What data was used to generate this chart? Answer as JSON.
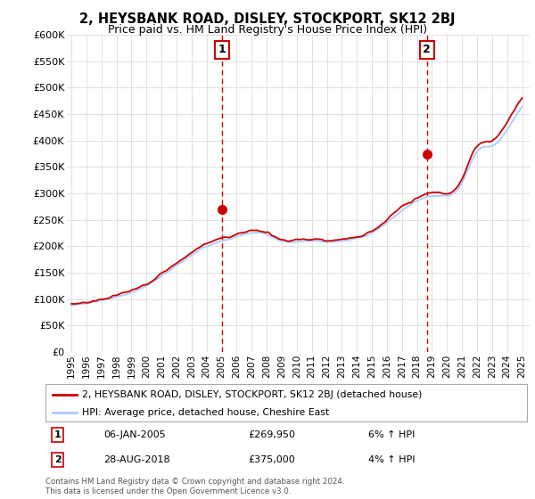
{
  "title": "2, HEYSBANK ROAD, DISLEY, STOCKPORT, SK12 2BJ",
  "subtitle": "Price paid vs. HM Land Registry's House Price Index (HPI)",
  "ylabel_ticks": [
    "£0",
    "£50K",
    "£100K",
    "£150K",
    "£200K",
    "£250K",
    "£300K",
    "£350K",
    "£400K",
    "£450K",
    "£500K",
    "£550K",
    "£600K"
  ],
  "ytick_values": [
    0,
    50000,
    100000,
    150000,
    200000,
    250000,
    300000,
    350000,
    400000,
    450000,
    500000,
    550000,
    600000
  ],
  "xlim_start": 1994.7,
  "xlim_end": 2025.5,
  "ylim_min": 0,
  "ylim_max": 600000,
  "sale1_year": 2005.03,
  "sale1_price": 269950,
  "sale1_label": "1",
  "sale1_date": "06-JAN-2005",
  "sale1_pct": "6% ↑ HPI",
  "sale2_year": 2018.66,
  "sale2_price": 375000,
  "sale2_label": "2",
  "sale2_date": "28-AUG-2018",
  "sale2_pct": "4% ↑ HPI",
  "hpi_line_color": "#aaccff",
  "price_line_color": "#cc0000",
  "sale_marker_color": "#cc0000",
  "vline_color": "#cc0000",
  "grid_color": "#e0e0e0",
  "background_color": "#ffffff",
  "legend_label_price": "2, HEYSBANK ROAD, DISLEY, STOCKPORT, SK12 2BJ (detached house)",
  "legend_label_hpi": "HPI: Average price, detached house, Cheshire East",
  "footer": "Contains HM Land Registry data © Crown copyright and database right 2024.\nThis data is licensed under the Open Government Licence v3.0.",
  "xtick_years": [
    1995,
    1996,
    1997,
    1998,
    1999,
    2000,
    2001,
    2002,
    2003,
    2004,
    2005,
    2006,
    2007,
    2008,
    2009,
    2010,
    2011,
    2012,
    2013,
    2014,
    2015,
    2016,
    2017,
    2018,
    2019,
    2020,
    2021,
    2022,
    2023,
    2024,
    2025
  ],
  "hpi_data_x": [
    1995,
    1996,
    1997,
    1998,
    1999,
    2000,
    2001,
    2002,
    2003,
    2004,
    2005,
    2006,
    2007,
    2008,
    2009,
    2010,
    2011,
    2012,
    2013,
    2014,
    2015,
    2016,
    2017,
    2018,
    2019,
    2020,
    2021,
    2022,
    2023,
    2024,
    2025
  ],
  "hpi_data_y": [
    88000,
    92000,
    97000,
    104000,
    112000,
    125000,
    143000,
    163000,
    183000,
    200000,
    210000,
    218000,
    225000,
    222000,
    210000,
    208000,
    210000,
    208000,
    210000,
    215000,
    225000,
    245000,
    268000,
    285000,
    295000,
    295000,
    320000,
    380000,
    390000,
    420000,
    465000
  ],
  "price_data_x": [
    1995,
    1996,
    1997,
    1998,
    1999,
    2000,
    2001,
    2002,
    2003,
    2004,
    2005,
    2006,
    2007,
    2008,
    2009,
    2010,
    2011,
    2012,
    2013,
    2014,
    2015,
    2016,
    2017,
    2018,
    2019,
    2020,
    2021,
    2022,
    2023,
    2024,
    2025
  ],
  "price_data_y": [
    90000,
    94000,
    99000,
    107000,
    116000,
    129000,
    148000,
    168000,
    188000,
    205000,
    215000,
    222000,
    230000,
    226000,
    213000,
    212000,
    214000,
    211000,
    213000,
    218000,
    229000,
    250000,
    274000,
    290000,
    302000,
    300000,
    328000,
    390000,
    400000,
    435000,
    480000
  ]
}
